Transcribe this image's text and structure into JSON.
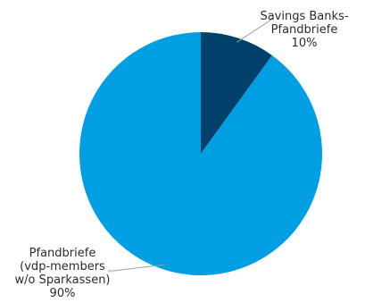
{
  "chart_data": {
    "type": "pie",
    "slices": [
      {
        "name": "Savings Banks-Pfandbriefe",
        "value": 10,
        "value_label": "10%",
        "label_lines": [
          "Savings Banks-",
          "Pfandbriefe",
          "10%"
        ],
        "color": "#00416b"
      },
      {
        "name": "Pfandbriefe (vdp-members w/o Sparkassen)",
        "value": 90,
        "value_label": "90%",
        "label_lines": [
          "Pfandbriefe",
          "(vdp-members",
          "w/o Sparkassen)",
          "90%"
        ],
        "color": "#009ee3"
      }
    ],
    "start_angle": "12 o'clock",
    "direction": "clockwise",
    "legend": "none"
  }
}
